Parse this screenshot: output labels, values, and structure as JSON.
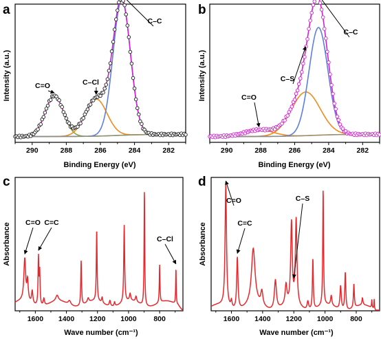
{
  "chart_data": [
    {
      "id": "a",
      "type": "line",
      "panel_label": "a",
      "xlabel": "Binding Energy (eV)",
      "ylabel": "Intensity (a.u.)",
      "xlim": [
        291,
        281
      ],
      "x_reversed": true,
      "xticks": [
        290,
        288,
        286,
        284,
        282
      ],
      "yticks": false,
      "baseline": 0.06,
      "peaks": [
        {
          "name": "C=O",
          "center": 288.7,
          "height": 0.28,
          "fwhm": 1.25,
          "color": "#8aa531"
        },
        {
          "name": "C–Cl",
          "center": 286.25,
          "height": 0.255,
          "fwhm": 1.5,
          "color": "#f08a1c"
        },
        {
          "name": "C–C",
          "center": 284.75,
          "height": 0.93,
          "fwhm": 1.2,
          "color": "#5b7fe0"
        }
      ],
      "series": [
        {
          "role": "raw",
          "marker": "circle-open",
          "color": "#1a1a1a"
        },
        {
          "role": "fit",
          "color": "#d01fd0"
        },
        {
          "role": "background",
          "color": "#8f8f7a"
        }
      ],
      "annotations": [
        {
          "text": "C=O",
          "x": 288.7
        },
        {
          "text": "C–Cl",
          "x": 286.25
        },
        {
          "text": "C–C",
          "x": 284.75
        }
      ]
    },
    {
      "id": "b",
      "type": "line",
      "panel_label": "b",
      "xlabel": "Binding Energy (eV)",
      "ylabel": "Intensity (a.u.)",
      "xlim": [
        291,
        281
      ],
      "x_reversed": true,
      "xticks": [
        290,
        288,
        286,
        284,
        282
      ],
      "yticks": false,
      "baseline": 0.06,
      "peaks": [
        {
          "name": "C=O",
          "center": 288.1,
          "height": 0.045,
          "fwhm": 2.0,
          "color": "#f08a1c"
        },
        {
          "name": "C–S",
          "center": 285.35,
          "height": 0.3,
          "fwhm": 2.0,
          "color": "#f08a1c"
        },
        {
          "name": "C–C",
          "center": 284.6,
          "height": 0.74,
          "fwhm": 1.3,
          "color": "#5b7fe0"
        }
      ],
      "series": [
        {
          "role": "raw",
          "marker": "circle-open",
          "color": "#d01fd0"
        },
        {
          "role": "fit",
          "color": "#d01fd0"
        },
        {
          "role": "background",
          "color": "#8f8f7a"
        }
      ],
      "annotations": [
        {
          "text": "C=O",
          "x": 288.1
        },
        {
          "text": "C–S",
          "x": 285.35
        },
        {
          "text": "C–C",
          "x": 284.6
        }
      ]
    },
    {
      "id": "c",
      "type": "line",
      "panel_label": "c",
      "xlabel": "Wave number (cm⁻¹)",
      "ylabel": "Absorbance",
      "xlim": [
        1730,
        650
      ],
      "x_reversed": true,
      "xticks": [
        1600,
        1400,
        1200,
        1000,
        800
      ],
      "yticks": false,
      "color": "#e8262b",
      "baseline": 0.07,
      "bands": [
        {
          "x": 1668,
          "h": 0.3,
          "w": 14
        },
        {
          "x": 1650,
          "h": 0.14,
          "w": 10
        },
        {
          "x": 1620,
          "h": 0.09,
          "w": 10
        },
        {
          "x": 1580,
          "h": 0.34,
          "w": 6
        },
        {
          "x": 1572,
          "h": 0.24,
          "w": 6
        },
        {
          "x": 1545,
          "h": 0.05,
          "w": 10
        },
        {
          "x": 1460,
          "h": 0.04,
          "w": 20
        },
        {
          "x": 1380,
          "h": 0.03,
          "w": 20
        },
        {
          "x": 1305,
          "h": 0.32,
          "w": 6
        },
        {
          "x": 1260,
          "h": 0.03,
          "w": 12
        },
        {
          "x": 1205,
          "h": 0.51,
          "w": 6
        },
        {
          "x": 1170,
          "h": 0.04,
          "w": 8
        },
        {
          "x": 1120,
          "h": 0.04,
          "w": 10
        },
        {
          "x": 1090,
          "h": 0.03,
          "w": 8
        },
        {
          "x": 1028,
          "h": 0.55,
          "w": 7
        },
        {
          "x": 990,
          "h": 0.05,
          "w": 10
        },
        {
          "x": 952,
          "h": 0.04,
          "w": 10
        },
        {
          "x": 898,
          "h": 0.83,
          "w": 5
        },
        {
          "x": 800,
          "h": 0.27,
          "w": 5
        },
        {
          "x": 695,
          "h": 0.26,
          "w": 4
        }
      ],
      "annotations": [
        {
          "text": "C=O",
          "x": 1668
        },
        {
          "text": "C=C",
          "x": 1580
        },
        {
          "text": "C–Cl",
          "x": 695
        }
      ]
    },
    {
      "id": "d",
      "type": "line",
      "panel_label": "d",
      "xlabel": "Wave number (cm⁻¹)",
      "ylabel": "Absorbance",
      "xlim": [
        1730,
        650
      ],
      "x_reversed": true,
      "xticks": [
        1600,
        1400,
        1200,
        1000,
        800
      ],
      "yticks": false,
      "color": "#e8262b",
      "baseline": 0.04,
      "bands": [
        {
          "x": 1636,
          "h": 0.87,
          "w": 11
        },
        {
          "x": 1600,
          "h": 0.05,
          "w": 10
        },
        {
          "x": 1562,
          "h": 0.37,
          "w": 10
        },
        {
          "x": 1460,
          "h": 0.4,
          "w": 28
        },
        {
          "x": 1405,
          "h": 0.1,
          "w": 16
        },
        {
          "x": 1318,
          "h": 0.21,
          "w": 16
        },
        {
          "x": 1250,
          "h": 0.14,
          "w": 14
        },
        {
          "x": 1215,
          "h": 0.58,
          "w": 12
        },
        {
          "x": 1185,
          "h": 0.61,
          "w": 12
        },
        {
          "x": 1110,
          "h": 0.06,
          "w": 12
        },
        {
          "x": 1078,
          "h": 0.36,
          "w": 7
        },
        {
          "x": 1012,
          "h": 0.83,
          "w": 6
        },
        {
          "x": 960,
          "h": 0.07,
          "w": 10
        },
        {
          "x": 900,
          "h": 0.17,
          "w": 10
        },
        {
          "x": 870,
          "h": 0.27,
          "w": 8
        },
        {
          "x": 815,
          "h": 0.17,
          "w": 7
        },
        {
          "x": 760,
          "h": 0.05,
          "w": 8
        },
        {
          "x": 700,
          "h": 0.06,
          "w": 4
        },
        {
          "x": 685,
          "h": 0.07,
          "w": 3
        }
      ],
      "annotations": [
        {
          "text": "C=O",
          "x": 1636
        },
        {
          "text": "C=C",
          "x": 1562
        },
        {
          "text": "C–S",
          "x": 1200
        }
      ]
    }
  ]
}
